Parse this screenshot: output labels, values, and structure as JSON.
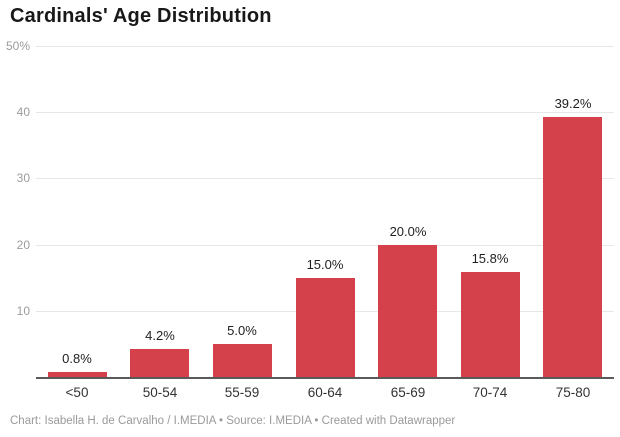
{
  "header": {
    "title": "Cardinals' Age Distribution"
  },
  "footer": {
    "text": "Chart: Isabella H. de Carvalho / I.MEDIA • Source: I.MEDIA • Created with Datawrapper"
  },
  "colors": {
    "bar": "#d4414b",
    "grid": "#e7e7e7",
    "baseline": "#5a5a5a",
    "axis_tick_label": "#9b9b9b",
    "value_label": "#1f1f1f",
    "category_label": "#333333",
    "title": "#191919",
    "footer_text": "#9a9a9a",
    "background": "#ffffff"
  },
  "chart_data": {
    "type": "bar",
    "title": "Cardinals' Age Distribution",
    "categories": [
      "<50",
      "50-54",
      "55-59",
      "60-64",
      "65-69",
      "70-74",
      "75-80"
    ],
    "values": [
      0.8,
      4.2,
      5.0,
      15.0,
      20.0,
      15.8,
      39.2
    ],
    "value_labels": [
      "0.8%",
      "4.2%",
      "5.0%",
      "15.0%",
      "20.0%",
      "15.8%",
      "39.2%"
    ],
    "xlabel": "",
    "ylabel": "",
    "ylim": [
      0,
      50
    ],
    "y_ticks": [
      {
        "value": 50,
        "label": "50%"
      },
      {
        "value": 40,
        "label": "40"
      },
      {
        "value": 30,
        "label": "30"
      },
      {
        "value": 20,
        "label": "20"
      },
      {
        "value": 10,
        "label": "10"
      }
    ],
    "grid": "horizontal-only",
    "legend": "none",
    "bar_color": "#d4414b"
  }
}
